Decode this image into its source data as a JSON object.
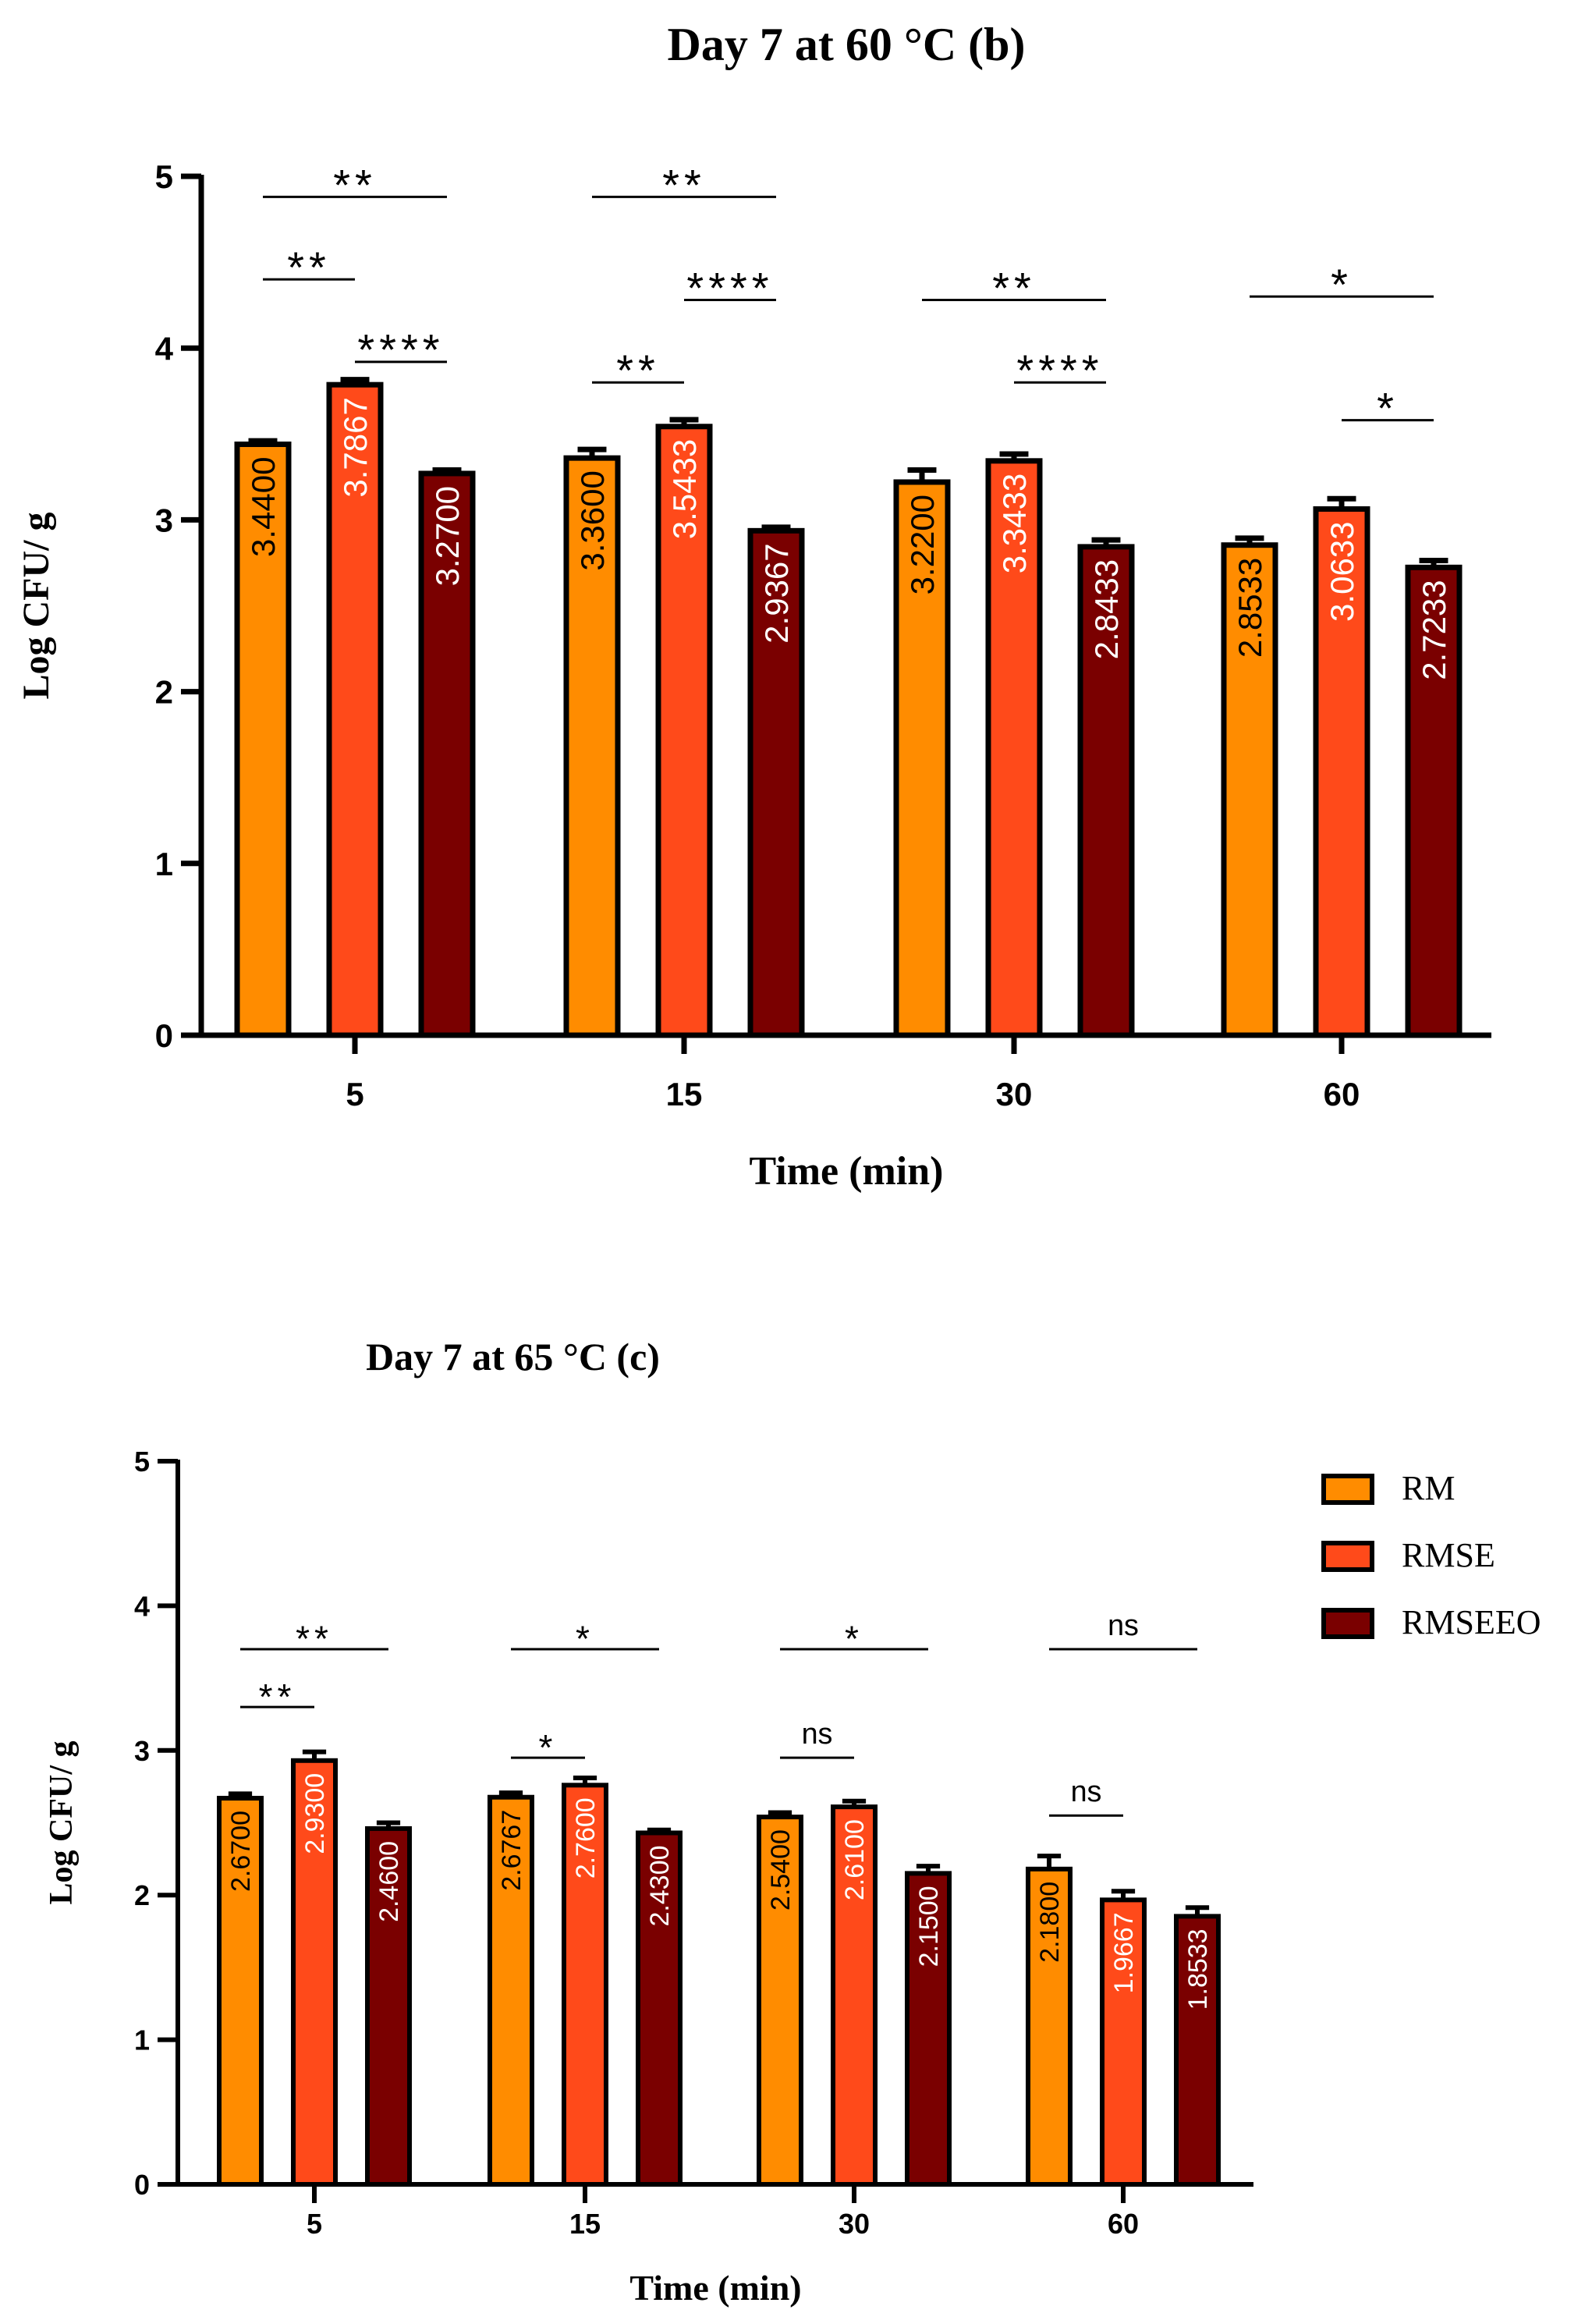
{
  "legend": {
    "items": [
      {
        "name": "RM",
        "color": "#FF8C00"
      },
      {
        "name": "RMSE",
        "color": "#FF4A1A"
      },
      {
        "name": "RMSEEO",
        "color": "#7A0000"
      }
    ]
  },
  "chart_data": [
    {
      "type": "bar",
      "title": "Day 7 at 60 °C (b)",
      "xlabel": "Time (min)",
      "ylabel": "Log CFU/ g",
      "ylim": [
        0,
        5
      ],
      "yticks": [
        "0",
        "1",
        "2",
        "3",
        "4",
        "5"
      ],
      "categories": [
        "5",
        "15",
        "30",
        "60"
      ],
      "series": [
        {
          "name": "RM",
          "color": "#FF8C00",
          "values": [
            3.44,
            3.36,
            3.22,
            2.8533
          ],
          "labels": [
            "3.4400",
            "3.3600",
            "3.2200",
            "2.8533"
          ],
          "errors": [
            0.02,
            0.05,
            0.07,
            0.04
          ]
        },
        {
          "name": "RMSE",
          "color": "#FF4A1A",
          "values": [
            3.7867,
            3.5433,
            3.3433,
            3.0633
          ],
          "labels": [
            "3.7867",
            "3.5433",
            "3.3433",
            "3.0633"
          ],
          "errors": [
            0.03,
            0.04,
            0.04,
            0.06
          ]
        },
        {
          "name": "RMSEEO",
          "color": "#7A0000",
          "values": [
            3.27,
            2.9367,
            2.8433,
            2.7233
          ],
          "labels": [
            "3.2700",
            "2.9367",
            "2.8433",
            "2.7233"
          ],
          "errors": [
            0.02,
            0.02,
            0.04,
            0.04
          ]
        }
      ],
      "significance": [
        {
          "group": 0,
          "from": 0,
          "to": 2,
          "y": 4.88,
          "label": "**"
        },
        {
          "group": 0,
          "from": 0,
          "to": 1,
          "y": 4.4,
          "label": "**"
        },
        {
          "group": 0,
          "from": 1,
          "to": 2,
          "y": 3.92,
          "label": "****"
        },
        {
          "group": 1,
          "from": 0,
          "to": 2,
          "y": 4.88,
          "label": "**"
        },
        {
          "group": 1,
          "from": 1,
          "to": 2,
          "y": 4.28,
          "label": "****"
        },
        {
          "group": 1,
          "from": 0,
          "to": 1,
          "y": 3.8,
          "label": "**"
        },
        {
          "group": 2,
          "from": 0,
          "to": 2,
          "y": 4.28,
          "label": "**"
        },
        {
          "group": 2,
          "from": 1,
          "to": 2,
          "y": 3.8,
          "label": "****"
        },
        {
          "group": 3,
          "from": 0,
          "to": 2,
          "y": 4.3,
          "label": "*"
        },
        {
          "group": 3,
          "from": 1,
          "to": 2,
          "y": 3.58,
          "label": "*"
        }
      ]
    },
    {
      "type": "bar",
      "title": "Day 7 at 65 °C (c)",
      "xlabel": "Time (min)",
      "ylabel": "Log CFU/ g",
      "ylim": [
        0,
        5
      ],
      "yticks": [
        "0",
        "1",
        "2",
        "3",
        "4",
        "5"
      ],
      "categories": [
        "5",
        "15",
        "30",
        "60"
      ],
      "series": [
        {
          "name": "RM",
          "color": "#FF8C00",
          "values": [
            2.67,
            2.6767,
            2.54,
            2.18
          ],
          "labels": [
            "2.6700",
            "2.6767",
            "2.5400",
            "2.1800"
          ],
          "errors": [
            0.03,
            0.03,
            0.03,
            0.09
          ]
        },
        {
          "name": "RMSE",
          "color": "#FF4A1A",
          "values": [
            2.93,
            2.76,
            2.61,
            1.9667
          ],
          "labels": [
            "2.9300",
            "2.7600",
            "2.6100",
            "1.9667"
          ],
          "errors": [
            0.06,
            0.05,
            0.04,
            0.06
          ]
        },
        {
          "name": "RMSEEO",
          "color": "#7A0000",
          "values": [
            2.46,
            2.43,
            2.15,
            1.8533
          ],
          "labels": [
            "2.4600",
            "2.4300",
            "2.1500",
            "1.8533"
          ],
          "errors": [
            0.04,
            0.02,
            0.05,
            0.06
          ]
        }
      ],
      "significance": [
        {
          "group": 0,
          "from": 0,
          "to": 2,
          "y": 3.7,
          "label": "**"
        },
        {
          "group": 0,
          "from": 0,
          "to": 1,
          "y": 3.3,
          "label": "**"
        },
        {
          "group": 1,
          "from": 0,
          "to": 2,
          "y": 3.7,
          "label": "*"
        },
        {
          "group": 1,
          "from": 0,
          "to": 1,
          "y": 2.95,
          "label": "*"
        },
        {
          "group": 2,
          "from": 0,
          "to": 2,
          "y": 3.7,
          "label": "*"
        },
        {
          "group": 2,
          "from": 0,
          "to": 1,
          "y": 2.95,
          "label": "ns"
        },
        {
          "group": 3,
          "from": 0,
          "to": 2,
          "y": 3.7,
          "label": "ns"
        },
        {
          "group": 3,
          "from": 0,
          "to": 1,
          "y": 2.55,
          "label": "ns"
        }
      ]
    }
  ]
}
